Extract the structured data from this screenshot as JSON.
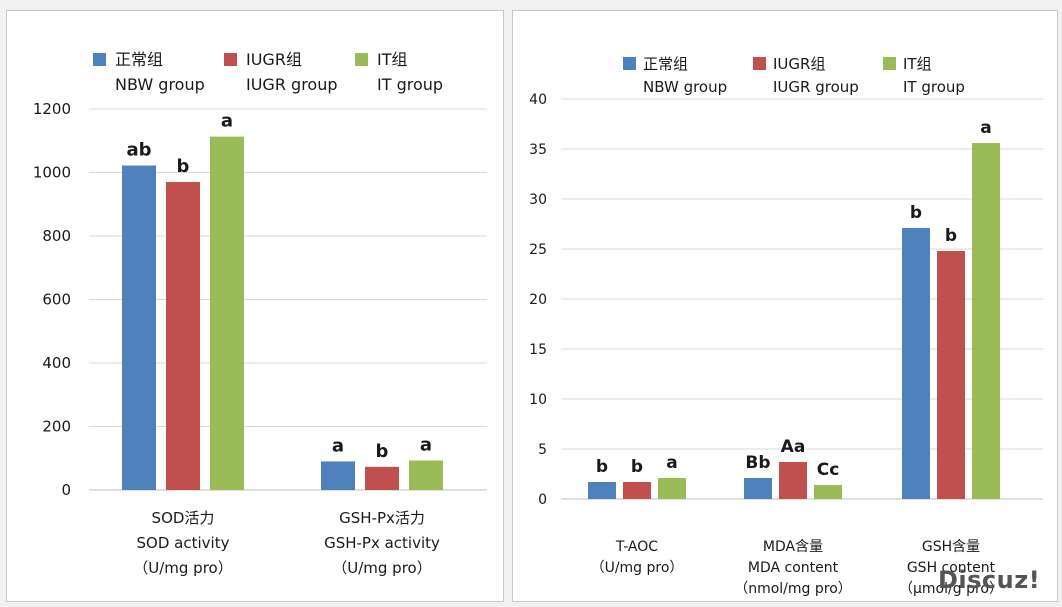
{
  "colors": {
    "nbw": "#4f81bd",
    "iugr": "#c0504d",
    "it": "#9bbb59",
    "grid": "#d9d9d9",
    "axis": "#bfbfbf",
    "text": "#1a1a1a"
  },
  "watermark": "Discuz!",
  "chart_data": [
    {
      "type": "bar",
      "legend": [
        {
          "zh": "正常组",
          "en": "NBW group"
        },
        {
          "zh": "IUGR组",
          "en": "IUGR group"
        },
        {
          "zh": "IT组",
          "en": "IT group"
        }
      ],
      "ylim": [
        0,
        1200
      ],
      "yticks": [
        "0",
        "200",
        "400",
        "600",
        "800",
        "1000",
        "1200"
      ],
      "grid": true,
      "categories": [
        {
          "lines": [
            "SOD活力",
            "SOD activity",
            "（U/mg pro）"
          ]
        },
        {
          "lines": [
            "GSH-Px活力",
            "GSH-Px activity",
            "（U/mg pro）"
          ]
        }
      ],
      "series": [
        {
          "name": "正常组 NBW group",
          "values": [
            1022,
            90
          ],
          "labels": [
            "ab",
            "a"
          ]
        },
        {
          "name": "IUGR组 IUGR group",
          "values": [
            970,
            73
          ],
          "labels": [
            "b",
            "b"
          ]
        },
        {
          "name": "IT组 IT group",
          "values": [
            1113,
            93
          ],
          "labels": [
            "a",
            "a"
          ]
        }
      ]
    },
    {
      "type": "bar",
      "legend": [
        {
          "zh": "正常组",
          "en": "NBW group"
        },
        {
          "zh": "IUGR组",
          "en": "IUGR group"
        },
        {
          "zh": "IT组",
          "en": "IT group"
        }
      ],
      "ylim": [
        0,
        40
      ],
      "yticks": [
        "0",
        "5",
        "10",
        "15",
        "20",
        "25",
        "30",
        "35",
        "40"
      ],
      "grid": true,
      "categories": [
        {
          "lines": [
            "T-AOC",
            "（U/mg pro）"
          ]
        },
        {
          "lines": [
            "MDA含量",
            "MDA content",
            "（nmol/mg pro）"
          ]
        },
        {
          "lines": [
            "GSH含量",
            "GSH content",
            "（μmol/g pro）"
          ]
        }
      ],
      "series": [
        {
          "name": "正常组 NBW group",
          "values": [
            1.7,
            2.1,
            27.1
          ],
          "labels": [
            "b",
            "Bb",
            "b"
          ]
        },
        {
          "name": "IUGR组 IUGR group",
          "values": [
            1.7,
            3.7,
            24.8
          ],
          "labels": [
            "b",
            "Aa",
            "b"
          ]
        },
        {
          "name": "IT组 IT group",
          "values": [
            2.1,
            1.4,
            35.6
          ],
          "labels": [
            "a",
            "Cc",
            "a"
          ]
        }
      ]
    }
  ]
}
